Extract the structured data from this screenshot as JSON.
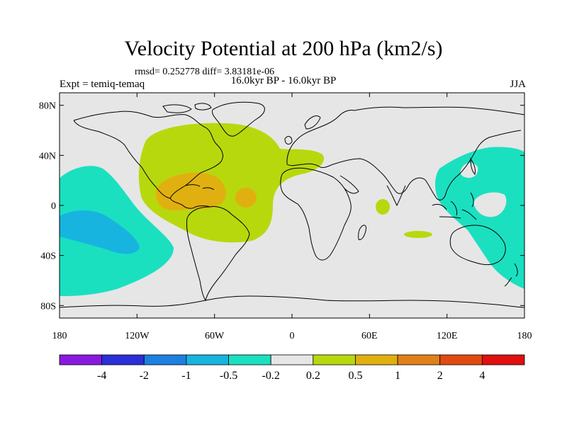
{
  "title": "Velocity Potential at 200 hPa (km2/s)",
  "stats": "rmsd= 0.252778 diff= 3.83181e-06",
  "experiment": "Expt = temiq-temaq",
  "period": "16.0kyr BP - 16.0kyr BP",
  "season": "JJA",
  "map": {
    "lat_range": [
      -90,
      90
    ],
    "lon_range": [
      -180,
      180
    ],
    "lat_ticks": [
      {
        "label": "80N",
        "value": 80
      },
      {
        "label": "40N",
        "value": 40
      },
      {
        "label": "0",
        "value": 0
      },
      {
        "label": "40S",
        "value": -40
      },
      {
        "label": "80S",
        "value": -80
      }
    ],
    "lon_ticks": [
      {
        "label": "180",
        "value": -180
      },
      {
        "label": "120W",
        "value": -120
      },
      {
        "label": "60W",
        "value": -60
      },
      {
        "label": "0",
        "value": 0
      },
      {
        "label": "60E",
        "value": 60
      },
      {
        "label": "120E",
        "value": 120
      },
      {
        "label": "180",
        "value": 180
      }
    ]
  },
  "colorbar": {
    "colors": [
      "#8a19e0",
      "#2a2fd8",
      "#1d7fe0",
      "#17b4e0",
      "#1ae0c0",
      "#e6e6e6",
      "#b8d80e",
      "#e0b010",
      "#e08018",
      "#e04a10",
      "#e01010"
    ],
    "labels": [
      "-4",
      "-2",
      "-1",
      "-0.5",
      "-0.2",
      "0.2",
      "0.5",
      "1",
      "2",
      "4"
    ]
  },
  "colors": {
    "background": "#e6e6e6",
    "coast": "#000000",
    "positive_weak": "#b8d80e",
    "positive_mid": "#e0b010",
    "negative_weak": "#1ae0c0",
    "negative_mid": "#17b4e0"
  }
}
